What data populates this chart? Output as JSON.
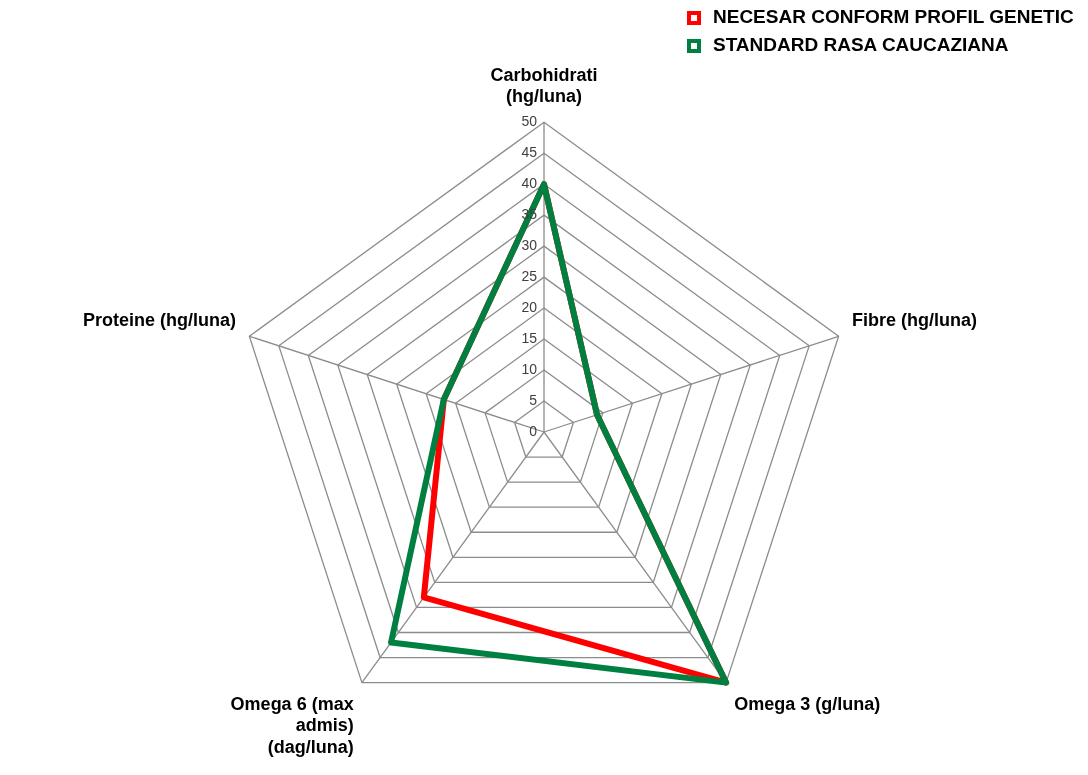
{
  "chart_data": {
    "type": "radar",
    "categories": [
      "Carbohidrati (hg/luna)",
      "Fibre (hg/luna)",
      "Omega 3 (g/luna)",
      "Omega 6 (max admis) (dag/luna)",
      "Proteine (hg/luna)"
    ],
    "series": [
      {
        "name": "NECESAR CONFORM PROFIL GENETIC",
        "color": "#ff0000",
        "values": [
          40,
          9,
          50,
          33,
          17
        ]
      },
      {
        "name": "STANDARD RASA CAUCAZIANA",
        "color": "#008040",
        "values": [
          40,
          9,
          50,
          42,
          17
        ]
      }
    ],
    "ylim": [
      0,
      50
    ],
    "yticks": [
      0,
      5,
      10,
      15,
      20,
      25,
      30,
      35,
      40,
      45,
      50
    ],
    "grid": true,
    "legend": "top right",
    "marker": "none"
  }
}
